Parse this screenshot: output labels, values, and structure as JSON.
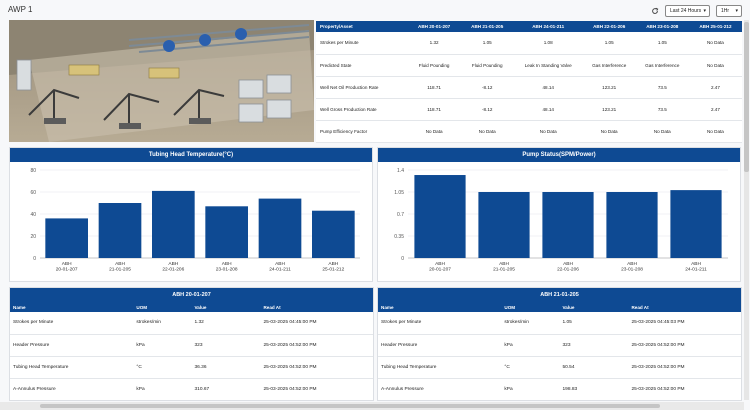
{
  "header": {
    "title": "AWP 1",
    "range_label": "Last 24 Hours",
    "interval_label": "1Hr"
  },
  "property_table": {
    "columns": [
      "Property/Asset",
      "ABH 20-01-207",
      "ABH 21-01-205",
      "ABH 24-01-211",
      "ABH 22-01-206",
      "ABH 23-01-208",
      "ABH 25-01-212"
    ],
    "rows": [
      [
        "Strokes per Minute",
        "1.32",
        "1.05",
        "1.08",
        "1.05",
        "1.05",
        "No Data"
      ],
      [
        "Predicted State",
        "Fluid Pounding",
        "Fluid Pounding",
        "Leak In Standing Valve",
        "Gas Interference",
        "Gas Interference",
        "No Data"
      ],
      [
        "Well Net Oil Production Rate",
        "118.71",
        "-8.12",
        "48.14",
        "123.21",
        "73.5",
        "2.47"
      ],
      [
        "Well Gross Production Rate",
        "118.71",
        "-8.12",
        "48.14",
        "123.21",
        "73.5",
        "2.47"
      ],
      [
        "Pump Efficiency Factor",
        "No Data",
        "No Data",
        "No Data",
        "No Data",
        "No Data",
        "No Data"
      ]
    ]
  },
  "chart_data": [
    {
      "type": "bar",
      "title": "Tubing Head Temperature(°C)",
      "categories": [
        "ABH\n20-01-207",
        "ABH\n21-01-205",
        "ABH\n22-01-206",
        "ABH\n23-01-208",
        "ABH\n24-01-211",
        "ABH\n25-01-212"
      ],
      "values": [
        36,
        50,
        61,
        47,
        54,
        43
      ],
      "ylim": [
        0,
        80
      ],
      "yticks": [
        "0",
        "20",
        "40",
        "60",
        "80"
      ],
      "color": "#0e4a93"
    },
    {
      "type": "bar",
      "title": "Pump Status(SPM/Power)",
      "categories": [
        "ABH\n20-01-207",
        "ABH\n21-01-205",
        "ABH\n22-01-206",
        "ABH\n23-01-208",
        "ABH\n24-01-211"
      ],
      "values": [
        1.32,
        1.05,
        1.05,
        1.05,
        1.08
      ],
      "ylim": [
        0,
        1.4
      ],
      "yticks": [
        "0",
        "0.35",
        "0.7",
        "1.05",
        "1.4"
      ],
      "color": "#0e4a93"
    }
  ],
  "readings": [
    {
      "title": "ABH 20-01-207",
      "columns": [
        "Name",
        "UOM",
        "Value",
        "Read At"
      ],
      "rows": [
        [
          "Strokes per Minute",
          "strokes/min",
          "1.32",
          "25-03-2025 04:45:00 PM"
        ],
        [
          "Header Pressure",
          "kPa",
          "323",
          "25-03-2025 04:52:00 PM"
        ],
        [
          "Tubing Head Temperature",
          "°C",
          "36.36",
          "25-03-2025 04:52:00 PM"
        ],
        [
          "A-Annulus Pressure",
          "kPa",
          "310.67",
          "25-03-2025 04:52:00 PM"
        ]
      ]
    },
    {
      "title": "ABH 21-01-205",
      "columns": [
        "Name",
        "UOM",
        "Value",
        "Read At"
      ],
      "rows": [
        [
          "Strokes per Minute",
          "strokes/min",
          "1.05",
          "25-03-2025 04:45:03 PM"
        ],
        [
          "Header Pressure",
          "kPa",
          "323",
          "25-03-2025 04:52:00 PM"
        ],
        [
          "Tubing Head Temperature",
          "°C",
          "50.54",
          "25-03-2025 04:52:00 PM"
        ],
        [
          "A-Annulus Pressure",
          "kPa",
          "198.83",
          "25-03-2025 04:52:00 PM"
        ]
      ]
    }
  ]
}
